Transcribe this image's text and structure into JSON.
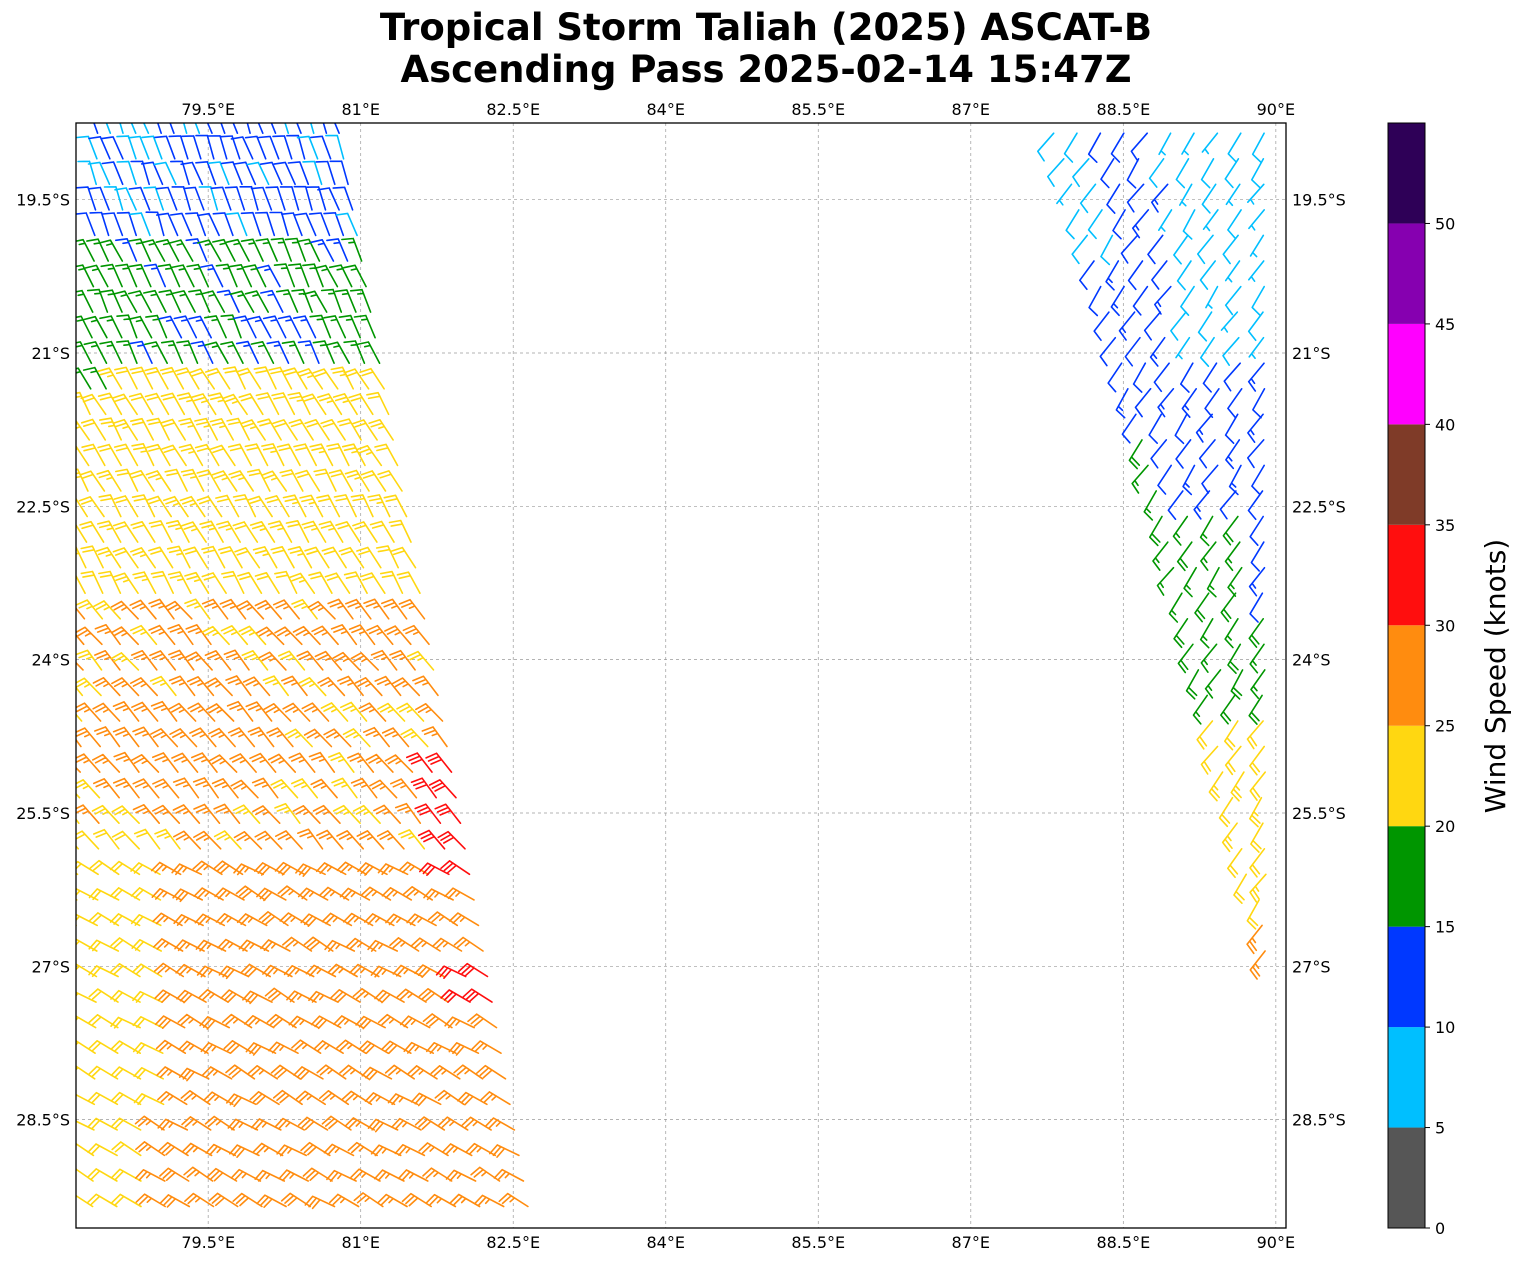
{
  "title": {
    "line1": "Tropical Storm Taliah (2025) ASCAT-B",
    "line2": "Ascending Pass 2025-02-14 15:47Z"
  },
  "map": {
    "lon_range": [
      78.2,
      90.1
    ],
    "lat_range": [
      -29.56,
      -18.75
    ],
    "lon_ticks": [
      {
        "value": 79.5,
        "label": "79.5°E"
      },
      {
        "value": 81.0,
        "label": "81°E"
      },
      {
        "value": 82.5,
        "label": "82.5°E"
      },
      {
        "value": 84.0,
        "label": "84°E"
      },
      {
        "value": 85.5,
        "label": "85.5°E"
      },
      {
        "value": 87.0,
        "label": "87°E"
      },
      {
        "value": 88.5,
        "label": "88.5°E"
      },
      {
        "value": 90.0,
        "label": "90°E"
      }
    ],
    "lat_ticks": [
      {
        "value": -19.5,
        "label": "19.5°S"
      },
      {
        "value": -21.0,
        "label": "21°S"
      },
      {
        "value": -22.5,
        "label": "22.5°S"
      },
      {
        "value": -24.0,
        "label": "24°S"
      },
      {
        "value": -25.5,
        "label": "25.5°S"
      },
      {
        "value": -27.0,
        "label": "27°S"
      },
      {
        "value": -28.5,
        "label": "28.5°S"
      }
    ],
    "grid": true
  },
  "colorbar": {
    "title": "Wind Speed (knots)",
    "bins": [
      {
        "from": 0,
        "to": 5,
        "color": "#565656"
      },
      {
        "from": 5,
        "to": 10,
        "color": "#00bfff"
      },
      {
        "from": 10,
        "to": 15,
        "color": "#0038ff"
      },
      {
        "from": 15,
        "to": 20,
        "color": "#009600"
      },
      {
        "from": 20,
        "to": 25,
        "color": "#ffd711"
      },
      {
        "from": 25,
        "to": 30,
        "color": "#ff8c0f"
      },
      {
        "from": 30,
        "to": 35,
        "color": "#ff0e0e"
      },
      {
        "from": 35,
        "to": 40,
        "color": "#7f3b28"
      },
      {
        "from": 40,
        "to": 45,
        "color": "#ff00ff"
      },
      {
        "from": 45,
        "to": 50,
        "color": "#8600b0"
      },
      {
        "from": 50,
        "to": 55,
        "color": "#2e0057"
      }
    ],
    "tick_labels": [
      "0",
      "5",
      "10",
      "15",
      "20",
      "25",
      "30",
      "35",
      "40",
      "45",
      "50"
    ]
  },
  "chart_data": {
    "type": "scatter",
    "description_kind": "wind barbs",
    "swaths": [
      {
        "lon_start_top": 78.35,
        "lon_end_top": 80.85,
        "lon_start_bottom": 78.0,
        "lon_end_bottom": 82.8,
        "lat_top": -18.85,
        "lat_bottom": -29.55,
        "lat_step": 0.25,
        "cross_track_cells": 20,
        "wind_zones": [
          {
            "lat_from": -18.85,
            "lat_to": -19.9,
            "speed_kn": 11,
            "direction_deg": 340
          },
          {
            "lat_from": -19.9,
            "lat_to": -21.3,
            "speed_kn": 16,
            "direction_deg": 335
          },
          {
            "lat_from": -21.3,
            "lat_to": -23.5,
            "speed_kn": 22,
            "direction_deg": 330
          },
          {
            "lat_from": -23.5,
            "lat_to": -26.0,
            "speed_kn": 26,
            "direction_deg": 320
          },
          {
            "lat_from": -26.0,
            "lat_to": -29.55,
            "speed_kn": 27,
            "direction_deg": 300
          }
        ],
        "notes": [
          "Northwest corner of swath shows 5-10 kn winds",
          "Eastern edge near 82°E, 25.5°S and 27.2°S shows 30-35 kn winds",
          "Southwestern part of swath shows 20-25 kn winds"
        ]
      },
      {
        "lon_start_top": 87.7,
        "lon_end_top": 90.0,
        "lon_start_bottom": 89.8,
        "lon_end_bottom": 90.0,
        "lat_top": -18.85,
        "lat_bottom": -26.9,
        "lat_step": 0.25,
        "notes": [
          "5-10 kn along the north and east",
          "10-15 kn across the north-central part",
          "15-20 kn near 23°S-24.5°S",
          "20-25 kn near 24.5°S-26.5°S",
          "25-30 kn at the southern tip near 26.5°S"
        ]
      }
    ]
  }
}
